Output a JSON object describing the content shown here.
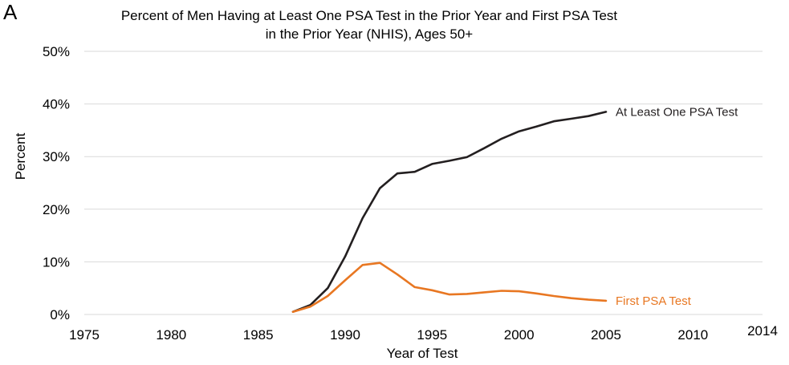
{
  "panel_letter": "A",
  "chart_data": {
    "type": "line",
    "title_lines": [
      "Percent of Men Having at Least One PSA Test in the Prior Year and First PSA Test",
      "in the Prior Year (NHIS), Ages 50+"
    ],
    "xlabel": "Year of Test",
    "ylabel": "Percent",
    "xlim": [
      1975,
      2014
    ],
    "ylim": [
      0,
      50
    ],
    "x_ticks": [
      1975,
      1980,
      1985,
      1990,
      1995,
      2000,
      2005,
      2010,
      2014
    ],
    "y_ticks": [
      0,
      10,
      20,
      30,
      40,
      50
    ],
    "y_tick_labels": [
      "0%",
      "10%",
      "20%",
      "30%",
      "40%",
      "50%"
    ],
    "grid": "horizontal",
    "legend": "direct labels at right end of lines",
    "series": [
      {
        "name": "At Least One PSA Test",
        "color": "#231f20",
        "x": [
          1987,
          1988,
          1989,
          1990,
          1991,
          1992,
          1993,
          1994,
          1995,
          1996,
          1997,
          1998,
          1999,
          2000,
          2001,
          2002,
          2003,
          2004,
          2005
        ],
        "y": [
          0.5,
          1.8,
          5.0,
          11.0,
          18.3,
          24.0,
          26.8,
          27.1,
          28.6,
          29.2,
          29.9,
          31.6,
          33.4,
          34.8,
          35.7,
          36.7,
          37.2,
          37.7,
          38.5
        ]
      },
      {
        "name": "First PSA Test",
        "color": "#e87722",
        "x": [
          1987,
          1988,
          1989,
          1990,
          1991,
          1992,
          1993,
          1994,
          1995,
          1996,
          1997,
          1998,
          1999,
          2000,
          2001,
          2002,
          2003,
          2004,
          2005
        ],
        "y": [
          0.5,
          1.5,
          3.5,
          6.5,
          9.4,
          9.8,
          7.6,
          5.2,
          4.6,
          3.8,
          3.9,
          4.2,
          4.5,
          4.4,
          4.0,
          3.5,
          3.1,
          2.8,
          2.6
        ]
      }
    ]
  }
}
